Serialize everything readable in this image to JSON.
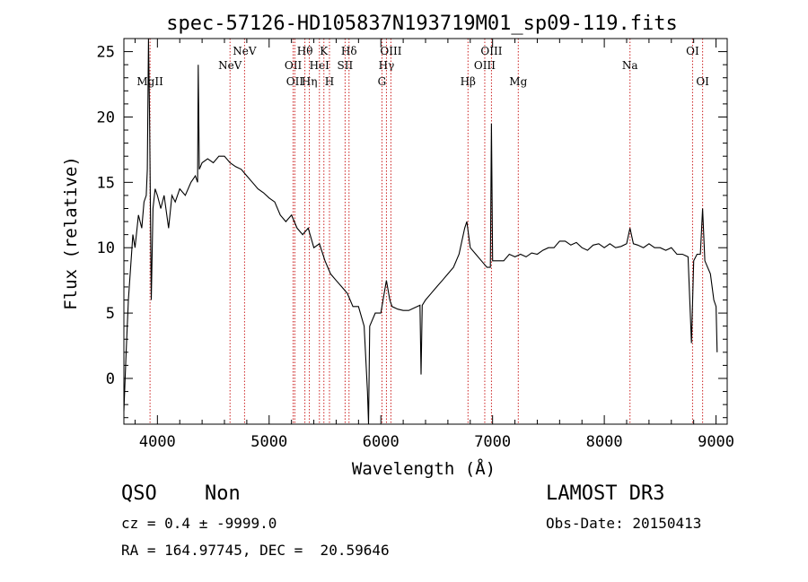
{
  "chart_data": {
    "type": "line",
    "title": "spec-57126-HD105837N193719M01_sp09-119.fits",
    "xlabel": "Wavelength (Å)",
    "ylabel": "Flux (relative)",
    "xlim": [
      3700,
      9100
    ],
    "ylim": [
      -3.5,
      26
    ],
    "xticks": [
      4000,
      5000,
      6000,
      7000,
      8000,
      9000
    ],
    "yticks": [
      0,
      5,
      10,
      15,
      20,
      25
    ],
    "grid": false,
    "series": [
      {
        "points": [
          [
            3700,
            -2.5
          ],
          [
            3720,
            2
          ],
          [
            3740,
            6
          ],
          [
            3760,
            8.5
          ],
          [
            3780,
            11
          ],
          [
            3800,
            10
          ],
          [
            3830,
            12.5
          ],
          [
            3860,
            11.5
          ],
          [
            3880,
            13.5
          ],
          [
            3900,
            14
          ],
          [
            3910,
            16
          ],
          [
            3920,
            26
          ],
          [
            3930,
            20
          ],
          [
            3945,
            6
          ],
          [
            3960,
            13
          ],
          [
            3980,
            14.5
          ],
          [
            4000,
            14
          ],
          [
            4030,
            13
          ],
          [
            4060,
            14
          ],
          [
            4100,
            11.5
          ],
          [
            4130,
            14
          ],
          [
            4160,
            13.5
          ],
          [
            4200,
            14.5
          ],
          [
            4250,
            14
          ],
          [
            4300,
            15
          ],
          [
            4340,
            15.5
          ],
          [
            4360,
            15
          ],
          [
            4365,
            24
          ],
          [
            4375,
            16
          ],
          [
            4400,
            16.5
          ],
          [
            4450,
            16.8
          ],
          [
            4500,
            16.5
          ],
          [
            4550,
            17
          ],
          [
            4600,
            17
          ],
          [
            4650,
            16.5
          ],
          [
            4700,
            16.2
          ],
          [
            4750,
            16
          ],
          [
            4800,
            15.5
          ],
          [
            4850,
            15
          ],
          [
            4900,
            14.5
          ],
          [
            4950,
            14.2
          ],
          [
            5000,
            13.8
          ],
          [
            5050,
            13.5
          ],
          [
            5100,
            12.5
          ],
          [
            5150,
            12
          ],
          [
            5200,
            12.5
          ],
          [
            5250,
            11.5
          ],
          [
            5300,
            11
          ],
          [
            5350,
            11.5
          ],
          [
            5400,
            10
          ],
          [
            5450,
            10.3
          ],
          [
            5500,
            9
          ],
          [
            5550,
            8
          ],
          [
            5600,
            7.5
          ],
          [
            5650,
            7
          ],
          [
            5700,
            6.5
          ],
          [
            5750,
            5.5
          ],
          [
            5800,
            5.5
          ],
          [
            5850,
            4
          ],
          [
            5880,
            -1
          ],
          [
            5890,
            -3.5
          ],
          [
            5900,
            4
          ],
          [
            5950,
            5
          ],
          [
            6000,
            5
          ],
          [
            6050,
            7.5
          ],
          [
            6080,
            6
          ],
          [
            6100,
            5.5
          ],
          [
            6150,
            5.3
          ],
          [
            6200,
            5.2
          ],
          [
            6250,
            5.2
          ],
          [
            6300,
            5.4
          ],
          [
            6350,
            5.6
          ],
          [
            6360,
            0.3
          ],
          [
            6370,
            5.6
          ],
          [
            6400,
            6
          ],
          [
            6450,
            6.5
          ],
          [
            6500,
            7
          ],
          [
            6550,
            7.5
          ],
          [
            6600,
            8
          ],
          [
            6650,
            8.5
          ],
          [
            6700,
            9.5
          ],
          [
            6750,
            11.5
          ],
          [
            6770,
            12
          ],
          [
            6800,
            10
          ],
          [
            6850,
            9.5
          ],
          [
            6900,
            9
          ],
          [
            6950,
            8.5
          ],
          [
            6980,
            8.5
          ],
          [
            6990,
            19.5
          ],
          [
            7000,
            9
          ],
          [
            7050,
            9
          ],
          [
            7100,
            9
          ],
          [
            7150,
            9.5
          ],
          [
            7200,
            9.3
          ],
          [
            7250,
            9.5
          ],
          [
            7300,
            9.3
          ],
          [
            7350,
            9.6
          ],
          [
            7400,
            9.5
          ],
          [
            7450,
            9.8
          ],
          [
            7500,
            10
          ],
          [
            7550,
            10
          ],
          [
            7600,
            10.5
          ],
          [
            7650,
            10.5
          ],
          [
            7700,
            10.2
          ],
          [
            7750,
            10.4
          ],
          [
            7800,
            10
          ],
          [
            7850,
            9.8
          ],
          [
            7900,
            10.2
          ],
          [
            7950,
            10.3
          ],
          [
            8000,
            10
          ],
          [
            8050,
            10.3
          ],
          [
            8100,
            10
          ],
          [
            8150,
            10.1
          ],
          [
            8200,
            10.3
          ],
          [
            8230,
            11.5
          ],
          [
            8260,
            10.3
          ],
          [
            8300,
            10.2
          ],
          [
            8350,
            10
          ],
          [
            8400,
            10.3
          ],
          [
            8450,
            10
          ],
          [
            8500,
            10
          ],
          [
            8550,
            9.8
          ],
          [
            8600,
            10
          ],
          [
            8650,
            9.5
          ],
          [
            8700,
            9.5
          ],
          [
            8750,
            9.3
          ],
          [
            8780,
            2.7
          ],
          [
            8800,
            9
          ],
          [
            8830,
            9.5
          ],
          [
            8860,
            9.5
          ],
          [
            8880,
            13
          ],
          [
            8900,
            9
          ],
          [
            8950,
            8
          ],
          [
            8980,
            6
          ],
          [
            9000,
            5.5
          ],
          [
            9010,
            2
          ]
        ]
      }
    ],
    "line_markers": [
      {
        "w": 3934,
        "label": "MgII",
        "row": 3
      },
      {
        "w": 4650,
        "label": "NeV",
        "row": 2
      },
      {
        "w": 4780,
        "label": "NeV",
        "row": 1
      },
      {
        "w": 5215,
        "label": "OII",
        "row": 2
      },
      {
        "w": 5230,
        "label": "OII",
        "row": 3
      },
      {
        "w": 5320,
        "label": "Hθ",
        "row": 1
      },
      {
        "w": 5360,
        "label": "Hη",
        "row": 3
      },
      {
        "w": 5450,
        "label": "HeI",
        "row": 2
      },
      {
        "w": 5490,
        "label": "K",
        "row": 1
      },
      {
        "w": 5540,
        "label": "H",
        "row": 3
      },
      {
        "w": 5680,
        "label": "SII",
        "row": 2
      },
      {
        "w": 5715,
        "label": "Hδ",
        "row": 1
      },
      {
        "w": 6010,
        "label": "G",
        "row": 3
      },
      {
        "w": 6050,
        "label": "Hγ",
        "row": 2
      },
      {
        "w": 6090,
        "label": "OIII",
        "row": 1
      },
      {
        "w": 6780,
        "label": "Hβ",
        "row": 3
      },
      {
        "w": 6930,
        "label": "OIII",
        "row": 2
      },
      {
        "w": 6990,
        "label": "OIII",
        "row": 1
      },
      {
        "w": 7230,
        "label": "Mg",
        "row": 3
      },
      {
        "w": 8230,
        "label": "Na",
        "row": 2
      },
      {
        "w": 8790,
        "label": "OI",
        "row": 1
      },
      {
        "w": 8880,
        "label": "OI",
        "row": 3
      }
    ],
    "marker_color": "#cc2222"
  },
  "info": {
    "class_label": "QSO",
    "subclass_label": "Non",
    "survey": "LAMOST DR3",
    "redshift": "cz = 0.4 ± -9999.0",
    "obs_date": "Obs-Date: 20150413",
    "coords": "RA = 164.97745, DEC =  20.59646"
  }
}
